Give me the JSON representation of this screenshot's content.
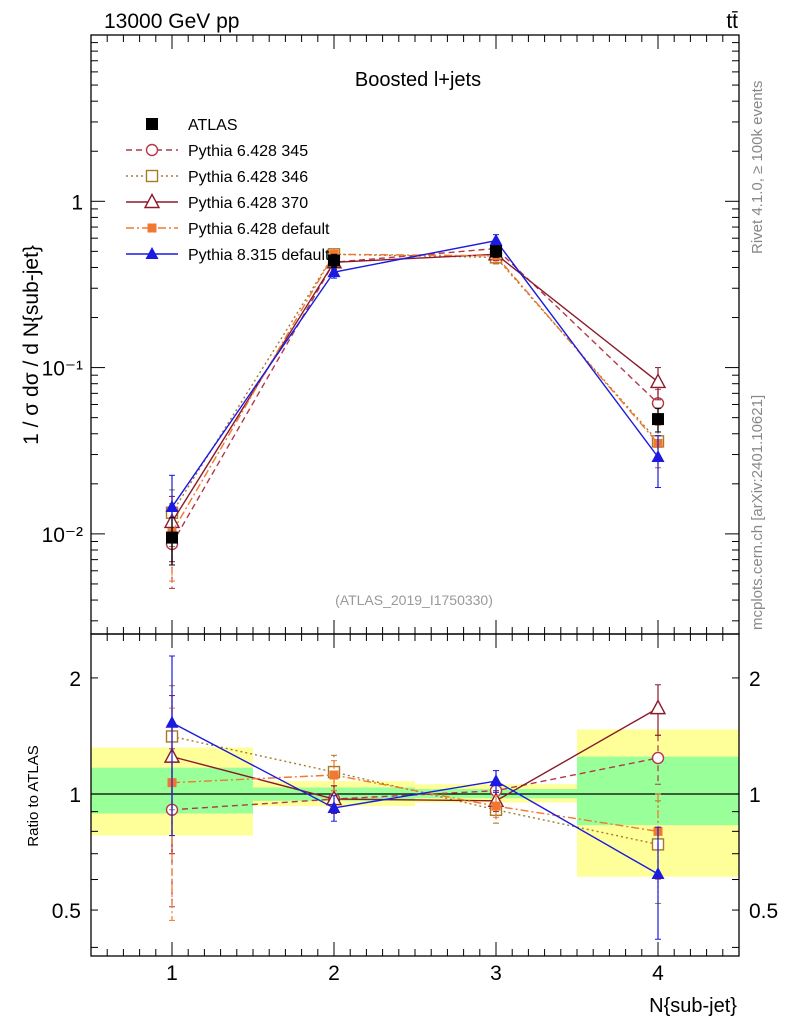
{
  "header": {
    "energy_label": "13000 GeV pp",
    "process_label": "tt̄"
  },
  "side_text": {
    "rivet": "Rivet 4.1.0, ≥ 100k events",
    "source": "mcplots.cern.ch [arXiv:2401.10621]"
  },
  "chart_data": [
    {
      "type": "line",
      "title": "Boosted l+jets",
      "watermark": "(ATLAS_2019_I1750330)",
      "xlabel": "N{sub-jet}",
      "ylabel": "1 / σ dσ / d N{sub-jet}",
      "yscale": "log",
      "xlim": [
        0.5,
        4.5
      ],
      "ylim": [
        0.0025,
        10
      ],
      "y_ticks": [
        {
          "value": 0.01,
          "label": "10⁻²"
        },
        {
          "value": 0.1,
          "label": "10⁻¹"
        },
        {
          "value": 1,
          "label": "1"
        }
      ],
      "x": [
        1,
        2,
        3,
        4
      ],
      "series": [
        {
          "name": "ATLAS",
          "color": "#000000",
          "dash": "",
          "marker": "square-filled",
          "values": [
            0.0095,
            0.44,
            0.5,
            0.049
          ],
          "errors": [
            0.003,
            0.04,
            0.04,
            0.008
          ]
        },
        {
          "name": "Pythia 6.428 345",
          "color": "#b03a48",
          "dash": "6,4",
          "marker": "circle-open",
          "values": [
            0.0087,
            0.43,
            0.52,
            0.061
          ],
          "errors": [
            0.004,
            0.04,
            0.04,
            0.013
          ]
        },
        {
          "name": "Pythia 6.428 346",
          "color": "#a57a2a",
          "dash": "2,3",
          "marker": "square-open",
          "values": [
            0.0134,
            0.48,
            0.46,
            0.036
          ],
          "errors": [
            0.005,
            0.04,
            0.04,
            0.011
          ]
        },
        {
          "name": "Pythia 6.428 370",
          "color": "#8b1a2b",
          "dash": "",
          "marker": "triangle-open",
          "values": [
            0.0118,
            0.43,
            0.48,
            0.082
          ],
          "errors": [
            0.005,
            0.04,
            0.04,
            0.018
          ]
        },
        {
          "name": "Pythia 6.428 default",
          "color": "#f07830",
          "dash": "8,3,2,3",
          "marker": "square-filled-small",
          "values": [
            0.0102,
            0.48,
            0.47,
            0.035
          ],
          "errors": [
            0.005,
            0.04,
            0.04,
            0.01
          ]
        },
        {
          "name": "Pythia 8.315 default",
          "color": "#1a1ae0",
          "dash": "",
          "marker": "triangle-filled",
          "values": [
            0.0145,
            0.375,
            0.58,
            0.029
          ],
          "errors": [
            0.008,
            0.03,
            0.05,
            0.01
          ]
        }
      ]
    },
    {
      "type": "line",
      "title": "",
      "xlabel": "N{sub-jet}",
      "ylabel": "Ratio to ATLAS",
      "yscale": "log",
      "xlim": [
        0.5,
        4.5
      ],
      "ylim": [
        0.38,
        2.6
      ],
      "y_ticks": [
        {
          "value": 0.5,
          "label": "0.5"
        },
        {
          "value": 1,
          "label": "1"
        },
        {
          "value": 2,
          "label": "2"
        }
      ],
      "x_ticks": [
        {
          "value": 1,
          "label": "1"
        },
        {
          "value": 2,
          "label": "2"
        },
        {
          "value": 3,
          "label": "3"
        },
        {
          "value": 4,
          "label": "4"
        }
      ],
      "bands": [
        {
          "x0": 0.5,
          "x1": 1.5,
          "yellow": [
            0.78,
            1.32
          ],
          "green": [
            0.89,
            1.17
          ]
        },
        {
          "x0": 1.5,
          "x1": 2.5,
          "yellow": [
            0.93,
            1.08
          ],
          "green": [
            0.96,
            1.04
          ]
        },
        {
          "x0": 2.5,
          "x1": 3.5,
          "yellow": [
            0.95,
            1.06
          ],
          "green": [
            0.975,
            1.03
          ]
        },
        {
          "x0": 3.5,
          "x1": 4.5,
          "yellow": [
            0.61,
            1.47
          ],
          "green": [
            0.83,
            1.25
          ]
        }
      ],
      "x": [
        1,
        2,
        3,
        4
      ],
      "series": [
        {
          "name": "Pythia 6.428 345",
          "color": "#b03a48",
          "dash": "6,4",
          "marker": "circle-open",
          "values": [
            0.91,
            0.97,
            1.02,
            1.24
          ],
          "errors": [
            0.4,
            0.08,
            0.05,
            0.18
          ]
        },
        {
          "name": "Pythia 6.428 346",
          "color": "#a57a2a",
          "dash": "2,3",
          "marker": "square-open",
          "values": [
            1.41,
            1.14,
            0.91,
            0.74
          ],
          "errors": [
            0.5,
            0.12,
            0.07,
            0.22
          ]
        },
        {
          "name": "Pythia 6.428 370",
          "color": "#8b1a2b",
          "dash": "",
          "marker": "triangle-open",
          "values": [
            1.25,
            0.97,
            0.96,
            1.67
          ],
          "errors": [
            0.55,
            0.08,
            0.06,
            0.25
          ]
        },
        {
          "name": "Pythia 6.428 default",
          "color": "#f07830",
          "dash": "8,3,2,3",
          "marker": "square-filled-small",
          "values": [
            1.07,
            1.12,
            0.93,
            0.8
          ],
          "errors": [
            0.6,
            0.1,
            0.06,
            0.2
          ]
        },
        {
          "name": "Pythia 8.315 default",
          "color": "#1a1ae0",
          "dash": "",
          "marker": "triangle-filled",
          "values": [
            1.53,
            0.92,
            1.08,
            0.62
          ],
          "errors": [
            0.75,
            0.07,
            0.07,
            0.2
          ]
        }
      ]
    }
  ]
}
